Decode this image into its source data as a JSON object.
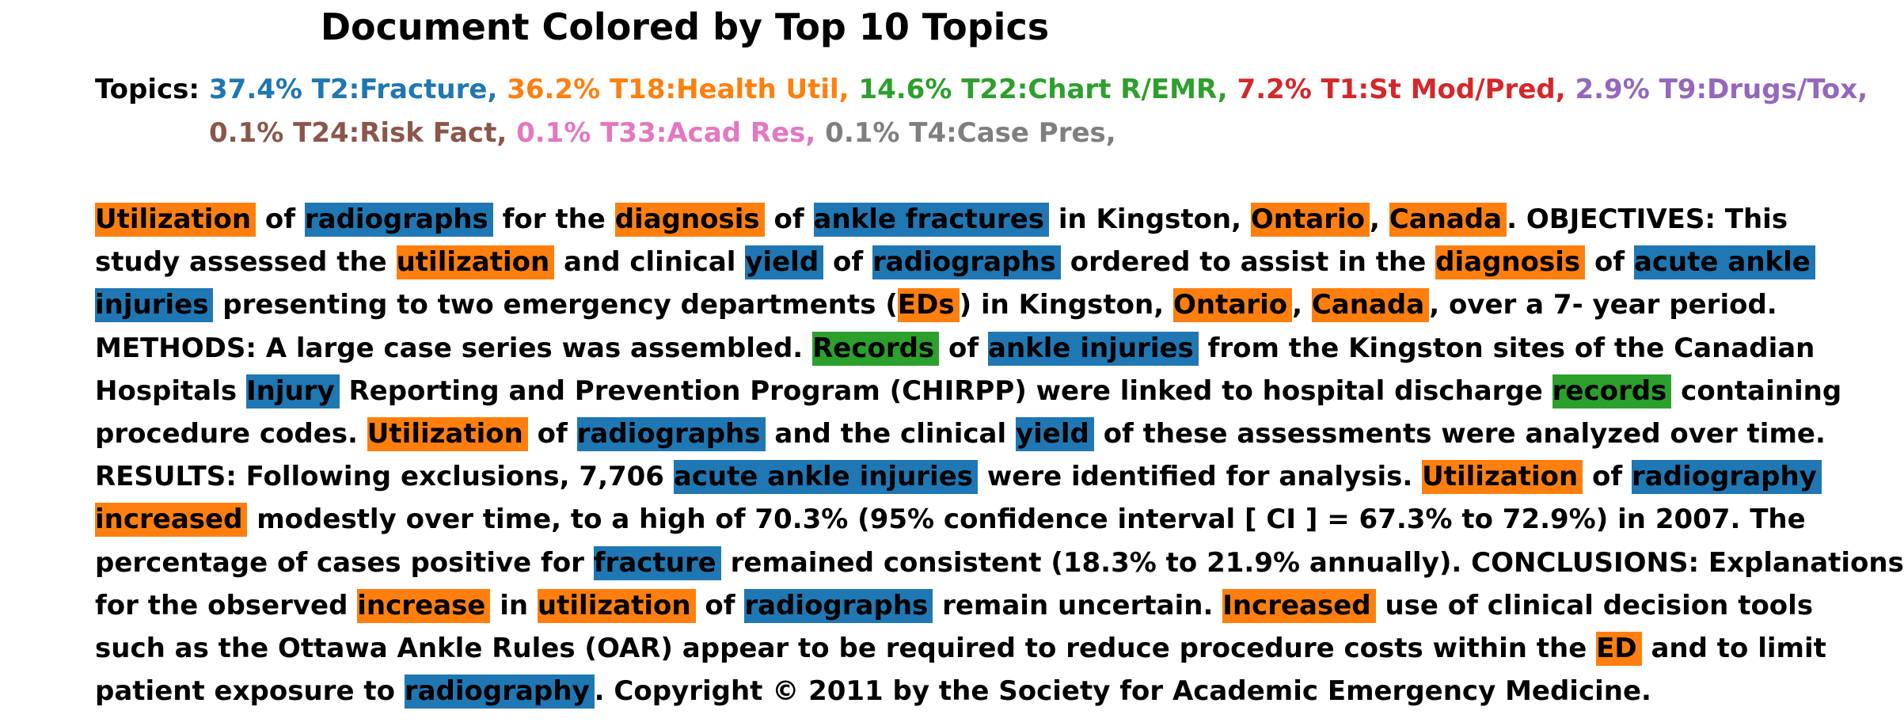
{
  "title": "Document Colored by Top 10 Topics",
  "topics_label": "Topics:",
  "topics": [
    {
      "text": "37.4% T2:Fracture,",
      "color": "#1f77b4"
    },
    {
      "text": "36.2% T18:Health Util,",
      "color": "#ff7f0e"
    },
    {
      "text": "14.6% T22:Chart R/EMR,",
      "color": "#2ca02c"
    },
    {
      "text": "7.2% T1:St Mod/Pred,",
      "color": "#d62728"
    },
    {
      "text": "2.9% T9:Drugs/Tox,",
      "color": "#9467bd"
    },
    {
      "text": "0.1% T24:Risk Fact,",
      "color": "#8c564b"
    },
    {
      "text": "0.1% T33:Acad Res,",
      "color": "#e377c2"
    },
    {
      "text": "0.1% T4:Case Pres,",
      "color": "#7f7f7f"
    }
  ],
  "colors": {
    "T2": "#1f77b4",
    "T18": "#ff7f0e",
    "T22": "#2ca02c"
  },
  "document_lines": [
    [
      {
        "text": "Utilization",
        "topic": "T18"
      },
      {
        "text": " of "
      },
      {
        "text": "radiographs",
        "topic": "T2"
      },
      {
        "text": " for the "
      },
      {
        "text": "diagnosis",
        "topic": "T18"
      },
      {
        "text": " of "
      },
      {
        "text": "ankle fractures",
        "topic": "T2"
      },
      {
        "text": " in Kingston, "
      },
      {
        "text": "Ontario",
        "topic": "T18"
      },
      {
        "text": ", "
      },
      {
        "text": "Canada",
        "topic": "T18"
      },
      {
        "text": ". OBJECTIVES: This"
      }
    ],
    [
      {
        "text": "study assessed the "
      },
      {
        "text": "utilization",
        "topic": "T18"
      },
      {
        "text": " and clinical "
      },
      {
        "text": "yield",
        "topic": "T2"
      },
      {
        "text": " of "
      },
      {
        "text": "radiographs",
        "topic": "T2"
      },
      {
        "text": " ordered to assist in the "
      },
      {
        "text": "diagnosis",
        "topic": "T18"
      },
      {
        "text": " of "
      },
      {
        "text": "acute ankle",
        "topic": "T2"
      }
    ],
    [
      {
        "text": "injuries",
        "topic": "T2"
      },
      {
        "text": " presenting to two emergency departments ("
      },
      {
        "text": "EDs",
        "topic": "T18"
      },
      {
        "text": ") in Kingston, "
      },
      {
        "text": "Ontario",
        "topic": "T18"
      },
      {
        "text": ", "
      },
      {
        "text": "Canada",
        "topic": "T18"
      },
      {
        "text": ", over a 7- year period."
      }
    ],
    [
      {
        "text": "METHODS: A large case series was assembled. "
      },
      {
        "text": "Records",
        "topic": "T22"
      },
      {
        "text": " of "
      },
      {
        "text": "ankle injuries",
        "topic": "T2"
      },
      {
        "text": " from the Kingston sites of the Canadian"
      }
    ],
    [
      {
        "text": "Hospitals "
      },
      {
        "text": "Injury",
        "topic": "T2"
      },
      {
        "text": " Reporting and Prevention Program (CHIRPP) were linked to hospital discharge "
      },
      {
        "text": "records",
        "topic": "T22"
      },
      {
        "text": " containing"
      }
    ],
    [
      {
        "text": "procedure codes. "
      },
      {
        "text": "Utilization",
        "topic": "T18"
      },
      {
        "text": " of "
      },
      {
        "text": "radiographs",
        "topic": "T2"
      },
      {
        "text": " and the clinical "
      },
      {
        "text": "yield",
        "topic": "T2"
      },
      {
        "text": " of these assessments were analyzed over time."
      }
    ],
    [
      {
        "text": "RESULTS: Following exclusions, 7,706 "
      },
      {
        "text": "acute ankle injuries",
        "topic": "T2"
      },
      {
        "text": " were identified for analysis. "
      },
      {
        "text": "Utilization",
        "topic": "T18"
      },
      {
        "text": " of "
      },
      {
        "text": "radiography",
        "topic": "T2"
      }
    ],
    [
      {
        "text": "increased",
        "topic": "T18"
      },
      {
        "text": " modestly over time, to a high of 70.3% (95% confidence interval [ CI ] = 67.3% to 72.9%) in 2007. The"
      }
    ],
    [
      {
        "text": "percentage of cases positive for "
      },
      {
        "text": "fracture",
        "topic": "T2"
      },
      {
        "text": " remained consistent (18.3% to 21.9% annually). CONCLUSIONS: Explanations"
      }
    ],
    [
      {
        "text": "for the observed "
      },
      {
        "text": "increase",
        "topic": "T18"
      },
      {
        "text": " in "
      },
      {
        "text": "utilization",
        "topic": "T18"
      },
      {
        "text": " of "
      },
      {
        "text": "radiographs",
        "topic": "T2"
      },
      {
        "text": " remain uncertain. "
      },
      {
        "text": "Increased",
        "topic": "T18"
      },
      {
        "text": " use of clinical decision tools"
      }
    ],
    [
      {
        "text": "such as the Ottawa Ankle Rules (OAR) appear to be required to reduce procedure costs within the "
      },
      {
        "text": "ED",
        "topic": "T18"
      },
      {
        "text": " and to limit"
      }
    ],
    [
      {
        "text": "patient exposure to "
      },
      {
        "text": "radiography",
        "topic": "T2"
      },
      {
        "text": ". Copyright © 2011 by the Society for Academic Emergency Medicine."
      }
    ]
  ]
}
